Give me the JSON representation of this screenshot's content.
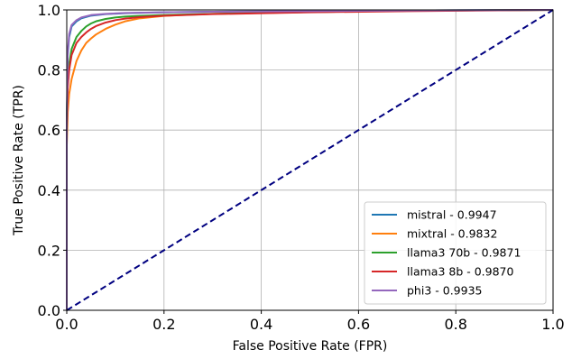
{
  "chart_data": {
    "type": "line",
    "title": "",
    "xlabel": "False Positive Rate (FPR)",
    "ylabel": "True Positive Rate (TPR)",
    "xlim": [
      0.0,
      1.0
    ],
    "ylim": [
      0.0,
      1.0
    ],
    "x_ticks": [
      "0.0",
      "0.2",
      "0.4",
      "0.6",
      "0.8",
      "1.0"
    ],
    "y_ticks": [
      "0.0",
      "0.2",
      "0.4",
      "0.6",
      "0.8",
      "1.0"
    ],
    "grid": true,
    "legend_position": "lower-right",
    "diagonal": {
      "x": [
        0,
        1
      ],
      "y": [
        0,
        1
      ],
      "color": "#000080",
      "style": "dashed"
    },
    "series": [
      {
        "name": "mistral - 0.9947",
        "color": "#1f77b4",
        "x": [
          0,
          0,
          0.002,
          0.005,
          0.01,
          0.02,
          0.03,
          0.05,
          0.08,
          0.12,
          0.2,
          0.3,
          0.5,
          0.7,
          1.0
        ],
        "y": [
          0,
          0.6,
          0.85,
          0.91,
          0.945,
          0.962,
          0.972,
          0.981,
          0.986,
          0.989,
          0.992,
          0.994,
          0.996,
          0.998,
          1.0
        ]
      },
      {
        "name": "mixtral - 0.9832",
        "color": "#ff7f0e",
        "x": [
          0,
          0,
          0.002,
          0.005,
          0.01,
          0.015,
          0.02,
          0.03,
          0.04,
          0.05,
          0.06,
          0.08,
          0.1,
          0.12,
          0.15,
          0.2,
          0.25,
          0.3,
          0.5,
          0.7,
          1.0
        ],
        "y": [
          0,
          0.55,
          0.66,
          0.72,
          0.77,
          0.8,
          0.83,
          0.865,
          0.89,
          0.905,
          0.918,
          0.937,
          0.951,
          0.962,
          0.972,
          0.98,
          0.984,
          0.987,
          0.993,
          0.997,
          1.0
        ]
      },
      {
        "name": "llama3 70b - 0.9871",
        "color": "#2ca02c",
        "x": [
          0,
          0,
          0.002,
          0.005,
          0.01,
          0.02,
          0.03,
          0.04,
          0.05,
          0.06,
          0.08,
          0.1,
          0.12,
          0.15,
          0.2,
          0.3,
          0.5,
          0.7,
          1.0
        ],
        "y": [
          0,
          0.65,
          0.76,
          0.82,
          0.87,
          0.91,
          0.93,
          0.945,
          0.955,
          0.962,
          0.97,
          0.975,
          0.978,
          0.98,
          0.983,
          0.987,
          0.993,
          0.997,
          1.0
        ]
      },
      {
        "name": "llama3 8b - 0.9870",
        "color": "#d62728",
        "x": [
          0,
          0,
          0.002,
          0.005,
          0.01,
          0.02,
          0.03,
          0.04,
          0.05,
          0.06,
          0.08,
          0.1,
          0.12,
          0.15,
          0.2,
          0.3,
          0.5,
          0.7,
          1.0
        ],
        "y": [
          0,
          0.6,
          0.74,
          0.8,
          0.85,
          0.89,
          0.91,
          0.925,
          0.937,
          0.946,
          0.958,
          0.966,
          0.971,
          0.976,
          0.981,
          0.986,
          0.992,
          0.996,
          1.0
        ]
      },
      {
        "name": "phi3 - 0.9935",
        "color": "#9467bd",
        "x": [
          0,
          0,
          0.002,
          0.005,
          0.01,
          0.02,
          0.03,
          0.05,
          0.08,
          0.12,
          0.2,
          0.3,
          0.5,
          0.7,
          1.0
        ],
        "y": [
          0,
          0.62,
          0.86,
          0.92,
          0.95,
          0.966,
          0.975,
          0.983,
          0.987,
          0.99,
          0.992,
          0.994,
          0.996,
          0.998,
          1.0
        ]
      }
    ]
  }
}
